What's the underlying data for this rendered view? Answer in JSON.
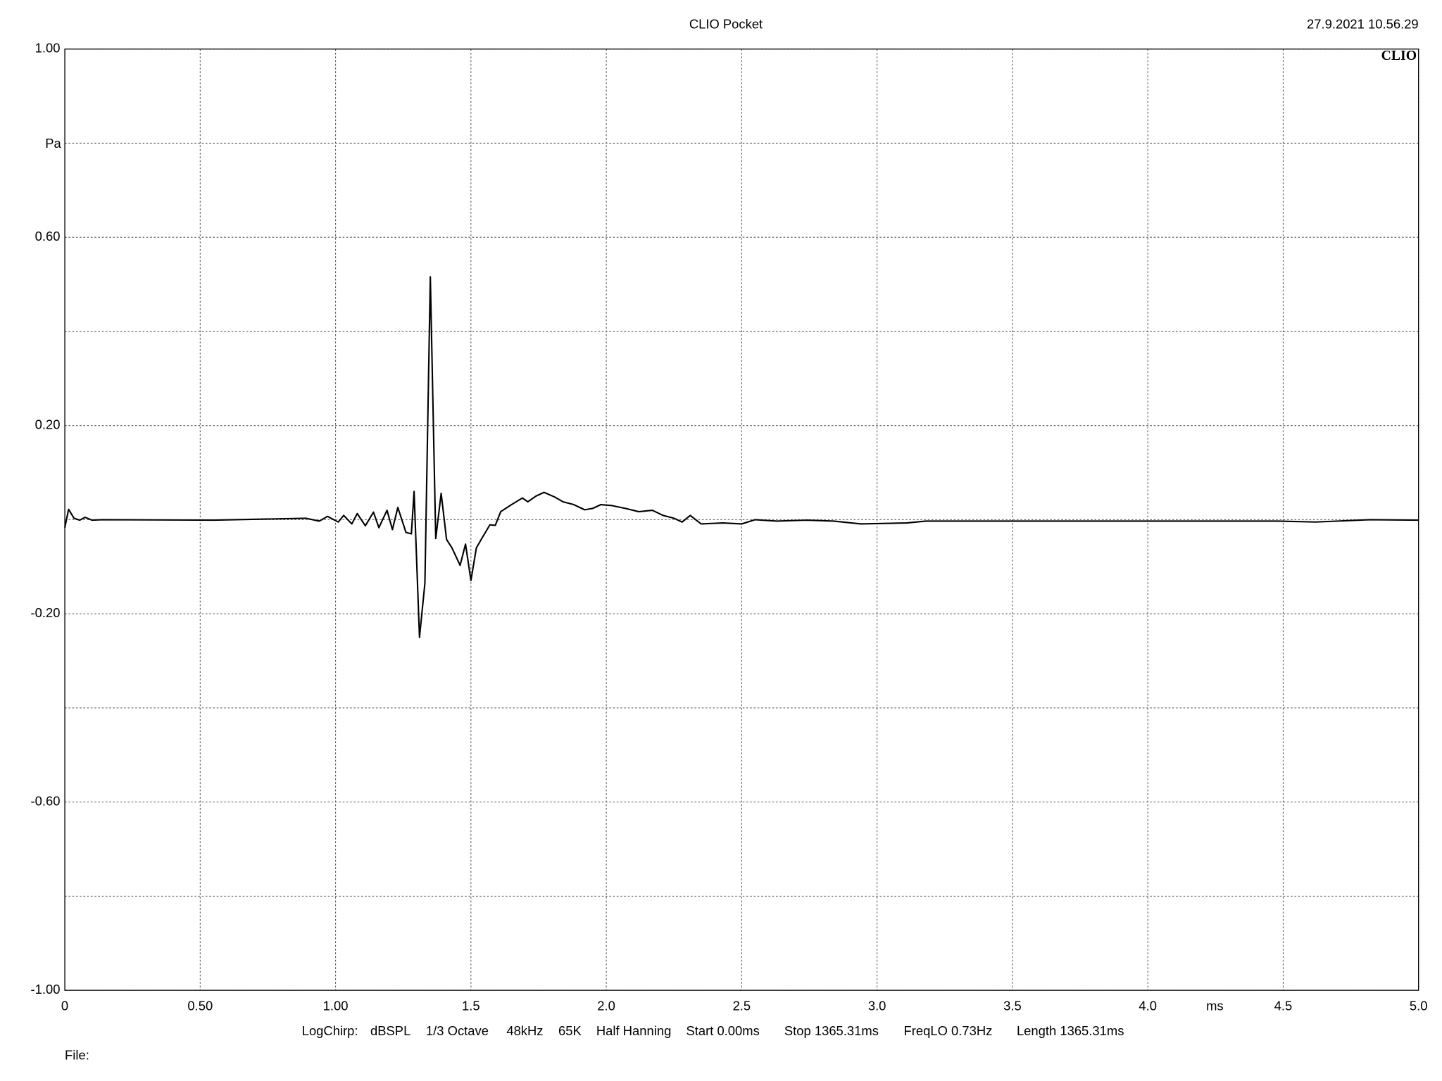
{
  "chart_data": {
    "type": "line",
    "title": "CLIO Pocket",
    "timestamp": "27.9.2021 10.56.29",
    "logo": "CLIO",
    "x_unit": "ms",
    "y_unit": "Pa",
    "footer": [
      "LogChirp:",
      "dBSPL",
      "1/3 Octave",
      "48kHz",
      "65K",
      "Half Hanning",
      "Start 0.00ms",
      "Stop 1365.31ms",
      "FreqLO 0.73Hz",
      "Length 1365.31ms"
    ],
    "file_label": "File:",
    "xlim": [
      0,
      5
    ],
    "ylim": [
      -1,
      1
    ],
    "xticks": [
      0,
      {
        "value": 0.5,
        "label": "0.50"
      },
      {
        "value": 1,
        "label": "1.00"
      },
      1.5,
      {
        "value": 2,
        "label": "2.0"
      },
      2.5,
      {
        "value": 3,
        "label": "3.0"
      },
      3.5,
      {
        "value": 4,
        "label": "4.0"
      },
      4.5,
      {
        "value": 5,
        "label": "5.0"
      }
    ],
    "yticks": [
      {
        "value": 1,
        "label": "1.00"
      },
      {
        "value": 0.6,
        "label": "0.60"
      },
      {
        "value": 0.2,
        "label": "0.20"
      },
      {
        "value": -0.2,
        "label": "-0.20"
      },
      {
        "value": -0.6,
        "label": "-0.60"
      },
      {
        "value": -1,
        "label": "-1.00"
      }
    ],
    "ygrid": [
      0.8,
      0.4,
      0,
      -0.4,
      -0.8
    ],
    "grid": true,
    "color": "#000000",
    "x": [
      0,
      0.014,
      0.034,
      0.055,
      0.075,
      0.1,
      0.14,
      0.55,
      0.89,
      0.94,
      0.97,
      1.01,
      1.03,
      1.06,
      1.08,
      1.11,
      1.14,
      1.16,
      1.19,
      1.21,
      1.23,
      1.26,
      1.28,
      1.29,
      1.31,
      1.33,
      1.35,
      1.37,
      1.39,
      1.41,
      1.43,
      1.46,
      1.48,
      1.5,
      1.52,
      1.54,
      1.57,
      1.59,
      1.61,
      1.65,
      1.69,
      1.71,
      1.74,
      1.77,
      1.81,
      1.84,
      1.88,
      1.92,
      1.95,
      1.98,
      2.02,
      2.07,
      2.12,
      2.17,
      2.21,
      2.25,
      2.28,
      2.31,
      2.35,
      2.43,
      2.5,
      2.55,
      2.63,
      2.74,
      2.84,
      2.94,
      3.11,
      3.18,
      3.52,
      3.86,
      4.21,
      4.48,
      4.62,
      4.82,
      5.0
    ],
    "values": [
      -0.017,
      0.022,
      0.003,
      -0.001,
      0.005,
      -0.001,
      0,
      -0.001,
      0.003,
      -0.003,
      0.007,
      -0.005,
      0.009,
      -0.009,
      0.013,
      -0.013,
      0.016,
      -0.017,
      0.02,
      -0.021,
      0.026,
      -0.027,
      -0.03,
      0.06,
      -0.25,
      -0.135,
      0.516,
      -0.04,
      0.056,
      -0.042,
      -0.06,
      -0.097,
      -0.052,
      -0.129,
      -0.06,
      -0.04,
      -0.011,
      -0.012,
      0.017,
      0.032,
      0.046,
      0.038,
      0.05,
      0.058,
      0.048,
      0.038,
      0.032,
      0.021,
      0.024,
      0.032,
      0.03,
      0.024,
      0.017,
      0.02,
      0.009,
      0.003,
      -0.005,
      0.009,
      -0.009,
      -0.007,
      -0.009,
      0,
      -0.003,
      -0.001,
      -0.003,
      -0.009,
      -0.007,
      -0.003,
      -0.003,
      -0.003,
      -0.003,
      -0.003,
      -0.005,
      0,
      -0.001
    ]
  }
}
